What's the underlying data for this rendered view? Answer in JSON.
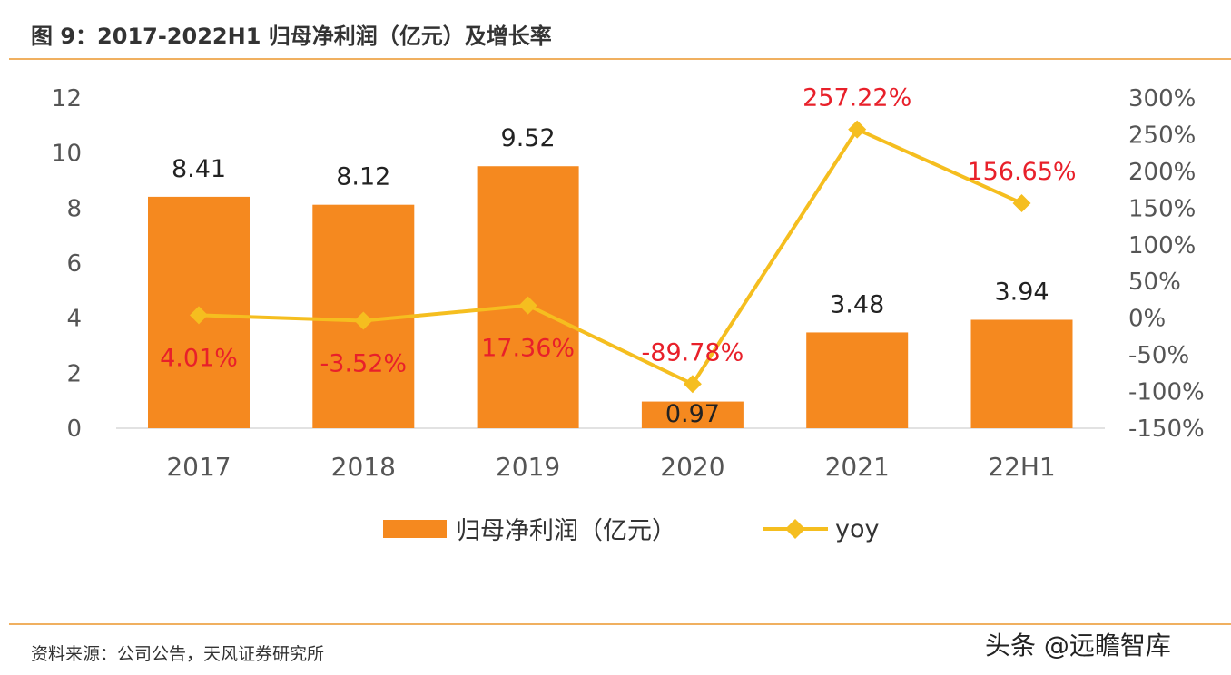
{
  "title": "图 9：2017-2022H1 归母净利润（亿元）及增长率",
  "source": "资料来源：公司公告，天风证券研究所",
  "watermark": "头条 @远瞻智库",
  "chart_data": {
    "type": "bar+line",
    "categories": [
      "2017",
      "2018",
      "2019",
      "2020",
      "2021",
      "22H1"
    ],
    "series": [
      {
        "name": "归母净利润（亿元）",
        "type": "bar",
        "axis": "left",
        "color": "#f5891f",
        "values": [
          8.41,
          8.12,
          9.52,
          0.97,
          3.48,
          3.94
        ],
        "labels": [
          "8.41",
          "8.12",
          "9.52",
          "0.97",
          "3.48",
          "3.94"
        ]
      },
      {
        "name": "yoy",
        "type": "line",
        "axis": "right",
        "color": "#f5be1f",
        "marker": "diamond",
        "values": [
          4.01,
          -3.52,
          17.36,
          -89.78,
          257.22,
          156.65
        ],
        "labels": [
          "4.01%",
          "-3.52%",
          "17.36%",
          "-89.78%",
          "257.22%",
          "156.65%"
        ],
        "label_color": "#e8202a"
      }
    ],
    "y_left": {
      "range": [
        0,
        12
      ],
      "ticks": [
        "0",
        "2",
        "4",
        "6",
        "8",
        "10",
        "12"
      ]
    },
    "y_right": {
      "range": [
        -150,
        300
      ],
      "ticks": [
        "-150%",
        "-100%",
        "-50%",
        "0%",
        "50%",
        "100%",
        "150%",
        "200%",
        "250%",
        "300%"
      ]
    },
    "grid": false,
    "legend": "bottom"
  }
}
